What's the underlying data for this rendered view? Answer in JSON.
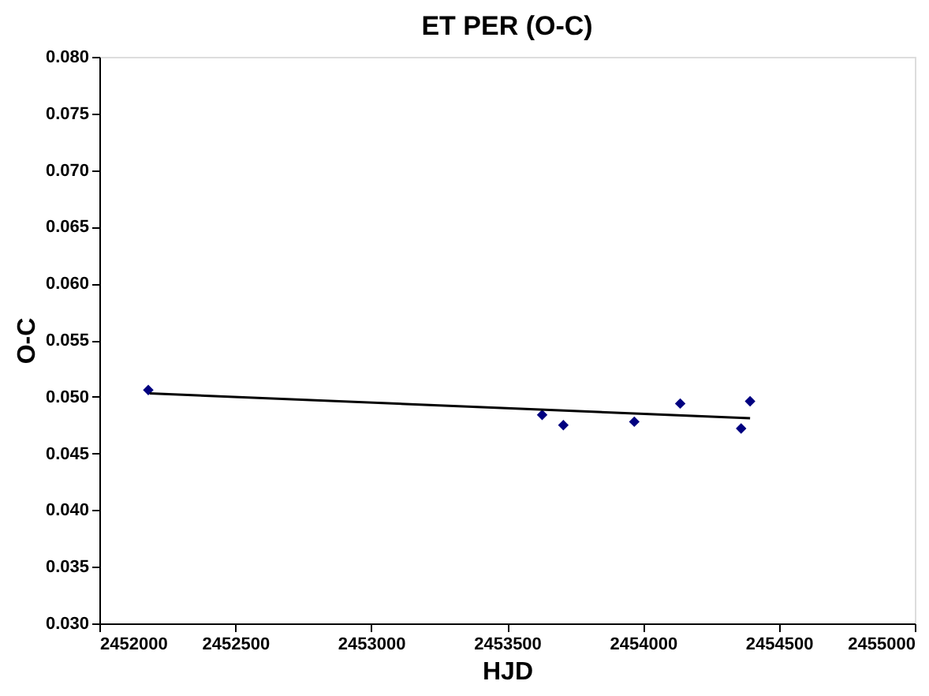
{
  "chart_data": {
    "type": "scatter",
    "title": "ET PER (O-C)",
    "xlabel": "HJD",
    "ylabel": "O-C",
    "grid": false,
    "legend": false,
    "xlim": [
      2452000,
      2455000
    ],
    "xticks": [
      2452000,
      2452500,
      2453000,
      2453500,
      2454000,
      2454500,
      2455000
    ],
    "ylim": [
      0.03,
      0.08
    ],
    "yticks": [
      {
        "value": 0.03,
        "label": "0.030"
      },
      0.035,
      {
        "value": 0.04,
        "label": "0.040"
      },
      0.045,
      {
        "value": 0.05,
        "label": "0.050"
      },
      0.055,
      {
        "value": 0.06,
        "label": "0.060"
      },
      0.065,
      {
        "value": 0.07,
        "label": "0.070"
      },
      0.075,
      {
        "value": 0.08,
        "label": "0.080"
      }
    ],
    "series": [
      {
        "marker": "diamond",
        "color": "#000080",
        "x": [
          2452180,
          2453629,
          2453707,
          2453968,
          2454137,
          2454361,
          2454394
        ],
        "values": [
          0.0506,
          0.0484,
          0.0475,
          0.0478,
          0.0494,
          0.0472,
          0.0496
        ]
      },
      {
        "type": "line",
        "color": "#000000",
        "x": [
          2452185,
          2454394
        ],
        "values": [
          0.0503,
          0.0481
        ]
      }
    ]
  }
}
